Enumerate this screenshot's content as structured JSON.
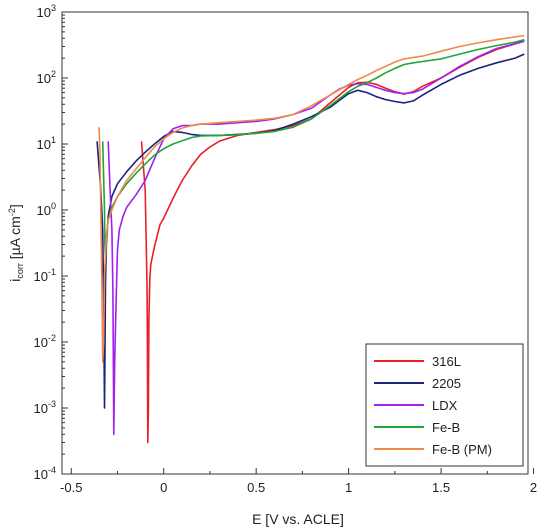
{
  "chart_data": {
    "type": "line",
    "xlabel": "E [V vs. ACLE]",
    "ylabel_main": "i",
    "ylabel_sub": "corr",
    "ylabel_unit": " [µA cm",
    "ylabel_unit_sup": "-2",
    "ylabel_close": "]",
    "xlim": [
      -0.55,
      1.97
    ],
    "ylim_log10": [
      -4,
      3
    ],
    "yscale": "log",
    "xticks": [
      {
        "v": -0.5,
        "label": "-0.5"
      },
      {
        "v": 0,
        "label": "0"
      },
      {
        "v": 0.5,
        "label": "0.5"
      },
      {
        "v": 1,
        "label": "1"
      },
      {
        "v": 1.5,
        "label": "1.5"
      },
      {
        "v": 2,
        "label": "2"
      }
    ],
    "yticks": [
      {
        "e": -4,
        "base": "10",
        "exp": "-4"
      },
      {
        "e": -3,
        "base": "10",
        "exp": "-3"
      },
      {
        "e": -2,
        "base": "10",
        "exp": "-2"
      },
      {
        "e": -1,
        "base": "10",
        "exp": "-1"
      },
      {
        "e": 0,
        "base": "10",
        "exp": "0"
      },
      {
        "e": 1,
        "base": "10",
        "exp": "1"
      },
      {
        "e": 2,
        "base": "10",
        "exp": "2"
      },
      {
        "e": 3,
        "base": "10",
        "exp": "3"
      }
    ],
    "legend_position": "bottom-right",
    "series": [
      {
        "name": "316L",
        "color": "#e8202a",
        "x": [
          -0.12,
          -0.1,
          -0.095,
          -0.09,
          -0.088,
          -0.086,
          -0.083,
          -0.08,
          -0.075,
          -0.07,
          -0.05,
          -0.02,
          0.0,
          0.05,
          0.1,
          0.15,
          0.2,
          0.25,
          0.3,
          0.4,
          0.5,
          0.6,
          0.7,
          0.8,
          0.9,
          1.0,
          1.05,
          1.1,
          1.15,
          1.2,
          1.25,
          1.3,
          1.35,
          1.4,
          1.5,
          1.6,
          1.7,
          1.8,
          1.9,
          1.95
        ],
        "y": [
          11,
          2.0,
          0.4,
          0.06,
          0.01,
          0.0003,
          0.001,
          0.02,
          0.09,
          0.15,
          0.28,
          0.6,
          0.75,
          1.5,
          2.8,
          4.6,
          7.0,
          9.0,
          11.0,
          13.5,
          15.0,
          16.5,
          19,
          24,
          42,
          72,
          85,
          86,
          80,
          70,
          62,
          57,
          62,
          75,
          100,
          145,
          205,
          270,
          330,
          370
        ]
      },
      {
        "name": "2205",
        "color": "#1a237e",
        "x": [
          -0.36,
          -0.34,
          -0.33,
          -0.325,
          -0.32,
          -0.318,
          -0.315,
          -0.31,
          -0.3,
          -0.28,
          -0.25,
          -0.2,
          -0.15,
          -0.1,
          -0.05,
          0.0,
          0.05,
          0.1,
          0.15,
          0.2,
          0.3,
          0.4,
          0.5,
          0.6,
          0.7,
          0.8,
          0.9,
          0.95,
          1.0,
          1.05,
          1.1,
          1.15,
          1.2,
          1.25,
          1.3,
          1.35,
          1.4,
          1.5,
          1.6,
          1.7,
          1.8,
          1.9,
          1.95
        ],
        "y": [
          11,
          2.0,
          0.5,
          0.05,
          0.001,
          0.005,
          0.08,
          0.3,
          0.8,
          1.6,
          2.5,
          3.8,
          5.5,
          7.5,
          10,
          13,
          15.5,
          15.0,
          14.0,
          13.5,
          13.5,
          14.0,
          14.5,
          16,
          20,
          26,
          36,
          46,
          58,
          65,
          60,
          52,
          47,
          44,
          42,
          45,
          55,
          80,
          110,
          140,
          170,
          200,
          230
        ]
      },
      {
        "name": "LDX",
        "color": "#a020f0",
        "x": [
          -0.3,
          -0.29,
          -0.28,
          -0.275,
          -0.27,
          -0.268,
          -0.265,
          -0.26,
          -0.255,
          -0.25,
          -0.24,
          -0.22,
          -0.2,
          -0.15,
          -0.1,
          -0.05,
          0.0,
          0.05,
          0.1,
          0.15,
          0.2,
          0.3,
          0.4,
          0.5,
          0.6,
          0.7,
          0.8,
          0.9,
          0.95,
          1.0,
          1.05,
          1.1,
          1.15,
          1.2,
          1.25,
          1.3,
          1.35,
          1.4,
          1.5,
          1.6,
          1.7,
          1.8,
          1.9,
          1.95
        ],
        "y": [
          11,
          2.0,
          0.5,
          0.06,
          0.0004,
          0.001,
          0.005,
          0.02,
          0.08,
          0.25,
          0.5,
          0.8,
          1.1,
          1.7,
          2.8,
          6.0,
          12.0,
          17,
          19,
          19,
          20,
          20,
          21,
          22,
          24,
          28,
          35,
          55,
          68,
          78,
          82,
          80,
          72,
          65,
          60,
          58,
          60,
          68,
          100,
          150,
          210,
          280,
          330,
          360
        ]
      },
      {
        "name": "Fe-B",
        "color": "#1fa539",
        "x": [
          -0.33,
          -0.32,
          -0.318,
          -0.315,
          -0.31,
          -0.3,
          -0.28,
          -0.25,
          -0.2,
          -0.15,
          -0.1,
          -0.05,
          0.0,
          0.05,
          0.1,
          0.15,
          0.2,
          0.3,
          0.4,
          0.5,
          0.6,
          0.7,
          0.8,
          0.9,
          1.0,
          1.05,
          1.1,
          1.15,
          1.2,
          1.25,
          1.3,
          1.35,
          1.4,
          1.5,
          1.6,
          1.7,
          1.8,
          1.9,
          1.95
        ],
        "y": [
          11,
          1.0,
          0.3,
          0.2,
          0.4,
          0.7,
          1.1,
          1.6,
          2.5,
          3.6,
          5.0,
          6.8,
          8.5,
          10.0,
          11.2,
          12.5,
          13.2,
          13.5,
          13.8,
          14.5,
          15.5,
          18,
          24,
          38,
          62,
          75,
          85,
          100,
          120,
          140,
          160,
          170,
          178,
          195,
          230,
          270,
          310,
          350,
          380
        ]
      },
      {
        "name": "Fe-B (PM)",
        "color": "#f08a4b",
        "x": [
          -0.35,
          -0.345,
          -0.34,
          -0.335,
          -0.33,
          -0.325,
          -0.32,
          -0.31,
          -0.3,
          -0.28,
          -0.25,
          -0.2,
          -0.15,
          -0.1,
          -0.05,
          0.0,
          0.05,
          0.1,
          0.15,
          0.2,
          0.3,
          0.4,
          0.5,
          0.6,
          0.7,
          0.8,
          0.9,
          1.0,
          1.05,
          1.1,
          1.15,
          1.2,
          1.25,
          1.3,
          1.35,
          1.4,
          1.5,
          1.6,
          1.7,
          1.8,
          1.9,
          1.95
        ],
        "y": [
          18,
          8.0,
          1.0,
          0.1,
          0.005,
          0.01,
          0.1,
          0.4,
          0.7,
          1.0,
          1.6,
          2.8,
          4.2,
          6.2,
          9.0,
          12.0,
          15.0,
          17.5,
          19.0,
          20,
          21,
          22,
          23,
          24.5,
          28,
          38,
          55,
          80,
          95,
          110,
          130,
          150,
          175,
          195,
          205,
          215,
          255,
          300,
          340,
          380,
          420,
          440
        ]
      }
    ]
  }
}
